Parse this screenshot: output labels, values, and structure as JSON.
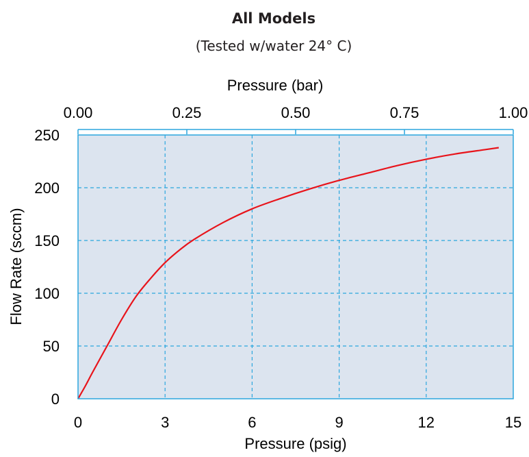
{
  "chart_data": {
    "type": "line",
    "title": "All Models",
    "subtitle": "(Tested w/water 24° C)",
    "xlabel": "Pressure (psig)",
    "x2label": "Pressure (bar)",
    "ylabel": "Flow Rate (sccm)",
    "xlim": [
      0,
      15
    ],
    "x2lim": [
      0,
      1.0
    ],
    "ylim": [
      0,
      250
    ],
    "x_ticks": [
      "0",
      "3",
      "6",
      "9",
      "12",
      "15"
    ],
    "x2_ticks": [
      "0.00",
      "0.25",
      "0.50",
      "0.75",
      "1.00"
    ],
    "x2_tick_values": [
      0,
      0.25,
      0.5,
      0.75,
      1.0
    ],
    "y_ticks": [
      "0",
      "50",
      "100",
      "150",
      "200",
      "250"
    ],
    "grid": true,
    "series": [
      {
        "color": "#e8141b",
        "x": [
          0,
          0.25,
          0.5,
          1,
          1.5,
          2,
          2.5,
          3,
          3.5,
          4,
          5,
          6,
          7,
          8,
          9,
          10,
          11,
          12,
          13,
          14,
          14.5
        ],
        "y": [
          0,
          12,
          25,
          50,
          75,
          97,
          114,
          129,
          141,
          151,
          167,
          180,
          190,
          199,
          207,
          214,
          221,
          227,
          232,
          236,
          238
        ]
      }
    ],
    "colors": {
      "plot_background": "#dce4ef",
      "grid": "#2ba6de",
      "axis": "#2ba6de",
      "line": "#e8141b"
    }
  }
}
